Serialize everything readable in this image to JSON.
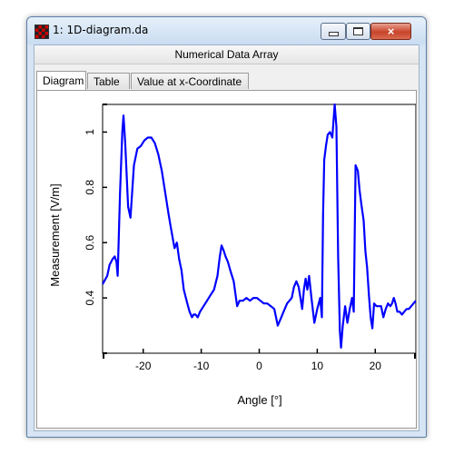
{
  "window": {
    "title": "1: 1D-diagram.da",
    "icon": "app-grid-icon",
    "controls": {
      "minimize": "minimize-icon",
      "maximize": "maximize-icon",
      "close": "×"
    }
  },
  "header": {
    "title": "Numerical Data Array"
  },
  "tabs": [
    {
      "label": "Diagram",
      "active": true
    },
    {
      "label": "Table",
      "active": false
    },
    {
      "label": "Value at x-Coordinate",
      "active": false
    }
  ],
  "chart_data": {
    "type": "line",
    "xlabel": "Angle [°]",
    "ylabel": "Measurement [V/m]",
    "xlim": [
      -27,
      27
    ],
    "ylim": [
      0.2,
      1.1
    ],
    "xticks": [
      -20,
      -10,
      0,
      10,
      20
    ],
    "xtick_labels": [
      "-20",
      "-10",
      "0",
      "10",
      "20"
    ],
    "yticks": [
      0.4,
      0.6,
      0.8,
      1.0
    ],
    "ytick_labels": [
      "0.4",
      "0.6",
      "0.8",
      "1"
    ],
    "grid": false,
    "line_color": "#0000ff",
    "series": [
      {
        "x": [
          -27,
          -26.2,
          -25.8,
          -25.3,
          -24.9,
          -24.6,
          -24.4,
          -24,
          -23.6,
          -23.4,
          -23.1,
          -22.6,
          -22.2,
          -21.6,
          -21,
          -20.4,
          -19.8,
          -19.2,
          -18.6,
          -18,
          -17.4,
          -16.8,
          -16.2,
          -15.6,
          -15.2,
          -14.6,
          -14.2,
          -13.8,
          -13.4,
          -13,
          -12.4,
          -12,
          -11.6,
          -11.3,
          -11,
          -10.6,
          -10.2,
          -9.6,
          -9,
          -8.4,
          -7.8,
          -7.2,
          -6.8,
          -6.5,
          -6.1,
          -5.8,
          -5.4,
          -5,
          -4.4,
          -4,
          -3.8,
          -3.4,
          -2.8,
          -2.2,
          -1.6,
          -1,
          -0.4,
          0.2,
          0.8,
          1.4,
          2,
          2.6,
          2.9,
          3.2,
          3.6,
          4.2,
          4.8,
          5.2,
          5.6,
          6,
          6.4,
          6.8,
          7.1,
          7.4,
          7.7,
          8,
          8.3,
          8.6,
          9,
          9.5,
          10,
          10.5,
          10.8,
          11,
          11.2,
          11.5,
          11.8,
          12.2,
          12.6,
          13,
          13.3,
          13.6,
          13.9,
          14.1,
          14.4,
          14.8,
          15.2,
          15.6,
          16,
          16.3,
          16.6,
          17,
          17.3,
          17.6,
          18,
          18.3,
          18.6,
          18.9,
          19.2,
          19.5,
          19.8,
          20.2,
          20.6,
          21,
          21.4,
          21.8,
          22.2,
          22.6,
          22.9,
          23.2,
          23.5,
          23.8,
          24.2,
          24.6,
          25,
          25.4,
          25.8,
          26.2,
          26.6,
          27
        ],
        "y": [
          0.45,
          0.48,
          0.52,
          0.54,
          0.55,
          0.53,
          0.48,
          0.78,
          1.0,
          1.06,
          0.96,
          0.73,
          0.69,
          0.88,
          0.94,
          0.95,
          0.97,
          0.98,
          0.98,
          0.96,
          0.92,
          0.86,
          0.78,
          0.7,
          0.65,
          0.58,
          0.6,
          0.54,
          0.5,
          0.43,
          0.38,
          0.35,
          0.33,
          0.34,
          0.34,
          0.33,
          0.35,
          0.37,
          0.39,
          0.41,
          0.43,
          0.48,
          0.55,
          0.59,
          0.57,
          0.55,
          0.53,
          0.5,
          0.46,
          0.4,
          0.37,
          0.39,
          0.39,
          0.4,
          0.39,
          0.4,
          0.4,
          0.39,
          0.38,
          0.38,
          0.37,
          0.36,
          0.33,
          0.3,
          0.32,
          0.35,
          0.38,
          0.39,
          0.4,
          0.44,
          0.46,
          0.44,
          0.4,
          0.36,
          0.43,
          0.47,
          0.43,
          0.48,
          0.4,
          0.31,
          0.36,
          0.4,
          0.33,
          0.7,
          0.9,
          0.95,
          0.99,
          1.0,
          0.98,
          1.1,
          1.02,
          0.55,
          0.28,
          0.22,
          0.3,
          0.37,
          0.31,
          0.36,
          0.4,
          0.35,
          0.88,
          0.86,
          0.79,
          0.74,
          0.68,
          0.57,
          0.51,
          0.41,
          0.33,
          0.29,
          0.38,
          0.37,
          0.37,
          0.37,
          0.33,
          0.36,
          0.38,
          0.37,
          0.38,
          0.4,
          0.38,
          0.35,
          0.35,
          0.34,
          0.35,
          0.36,
          0.36,
          0.37,
          0.38,
          0.39
        ]
      }
    ]
  }
}
